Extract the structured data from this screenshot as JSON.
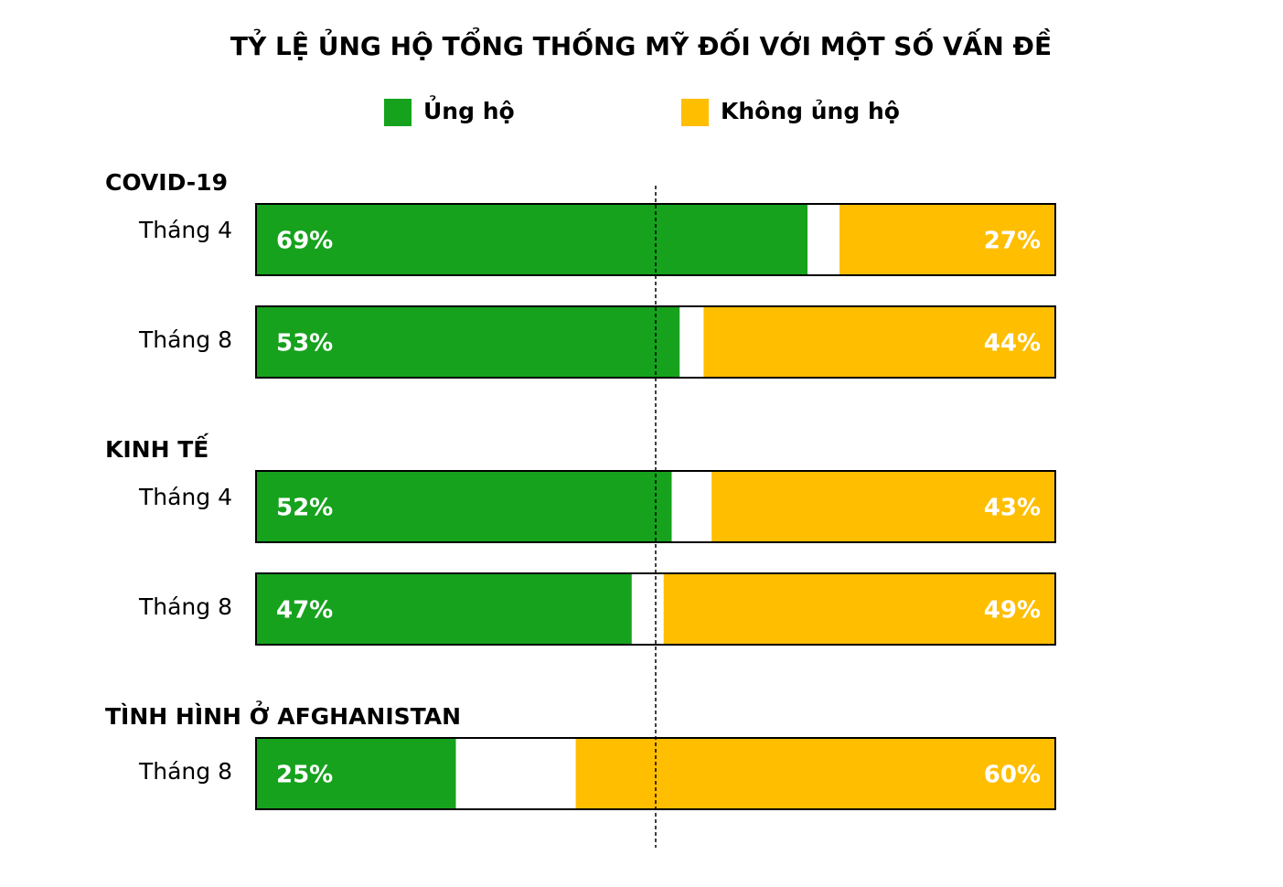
{
  "chart_data": {
    "type": "stacked-bar",
    "orientation": "horizontal",
    "title": "TỶ LỆ ỦNG HỘ TỔNG THỐNG MỸ ĐỐI VỚI MỘT SỐ VẤN ĐỀ",
    "groups": [
      {
        "name": "COVID-19",
        "categories": [
          "Tháng 4",
          "Tháng 8"
        ]
      },
      {
        "name": "KINH TẾ",
        "categories": [
          "Tháng 4",
          "Tháng 8"
        ]
      },
      {
        "name": "TÌNH HÌNH Ở AFGHANISTAN",
        "categories": [
          "Tháng 8"
        ]
      }
    ],
    "series": [
      {
        "name": "Ủng hộ",
        "color": "#16a21d",
        "stack_from": "left",
        "values": [
          69,
          53,
          52,
          47,
          25
        ],
        "value_labels": [
          "69%",
          "53%",
          "52%",
          "47%",
          "25%"
        ]
      },
      {
        "name": "Không ủng hộ",
        "color": "#ffbe00",
        "stack_from": "right",
        "values": [
          27,
          44,
          43,
          49,
          60
        ],
        "value_labels": [
          "27%",
          "44%",
          "43%",
          "49%",
          "60%"
        ]
      }
    ],
    "xlim": [
      0,
      100
    ],
    "reference_line": 50
  }
}
